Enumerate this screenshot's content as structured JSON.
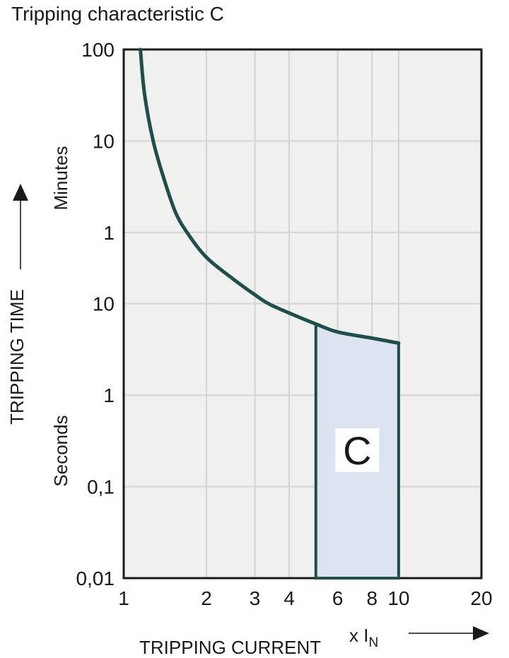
{
  "title": "Tripping characteristic C",
  "colors": {
    "curve": "#1d4f4b",
    "region_fill": "#dce4f2",
    "plot_background": "#f0f0ee",
    "gridline": "#d4d4d4",
    "frame": "#1a1a1a",
    "text": "#1a1a1a",
    "region_label_box": "#ffffff"
  },
  "y_axis": {
    "label": "TRIPPING TIME",
    "upper_unit": "Minutes",
    "lower_unit": "Seconds",
    "ticks": [
      {
        "label": "100",
        "seconds": 6000
      },
      {
        "label": "10",
        "seconds": 600
      },
      {
        "label": "1",
        "seconds": 60
      },
      {
        "label": "10",
        "seconds": 10
      },
      {
        "label": "1",
        "seconds": 1
      },
      {
        "label": "0,1",
        "seconds": 0.1
      },
      {
        "label": "0,01",
        "seconds": 0.01
      }
    ],
    "gridlines_seconds": [
      600,
      60,
      10,
      1,
      0.1
    ],
    "range_seconds": [
      0.01,
      6000
    ]
  },
  "x_axis": {
    "label": "TRIPPING CURRENT",
    "multiplier_prefix": "x I",
    "multiplier_subscript": "N",
    "ticks": [
      {
        "label": "1",
        "value": 1
      },
      {
        "label": "2",
        "value": 2
      },
      {
        "label": "3",
        "value": 3
      },
      {
        "label": "4",
        "value": 4
      },
      {
        "label": "6",
        "value": 6
      },
      {
        "label": "8",
        "value": 8
      },
      {
        "label": "10",
        "value": 10
      },
      {
        "label": "20",
        "value": 20
      }
    ],
    "gridlines": [
      2,
      3,
      4,
      6,
      8,
      10
    ],
    "range": [
      1,
      20
    ]
  },
  "chart_data": {
    "type": "line",
    "title": "Tripping characteristic C",
    "xlabel": "TRIPPING CURRENT (x IN)",
    "ylabel": "TRIPPING TIME (Minutes / Seconds)",
    "x_scale": "log",
    "y_scale": "log",
    "xlim": [
      1,
      20
    ],
    "ylim_seconds": [
      0.01,
      6000
    ],
    "grid": true,
    "series": [
      {
        "name": "C tripping characteristic curve",
        "x": [
          1.15,
          1.19,
          1.28,
          1.4,
          1.54,
          1.7,
          2.0,
          2.5,
          3.0,
          3.36,
          4.0,
          5.0,
          6.0,
          8.0,
          10.0
        ],
        "t_seconds": [
          6000,
          1970,
          600,
          233,
          101,
          60,
          32,
          18.6,
          12.5,
          10,
          7.9,
          6.0,
          4.9,
          4.2,
          3.7
        ]
      }
    ],
    "region": {
      "label": "C",
      "x_range": [
        5,
        10
      ],
      "bottom_seconds": 0.01,
      "top_points_x": [
        5.0,
        6.0,
        8.0,
        10.0
      ],
      "top_points_t_seconds": [
        6.0,
        4.9,
        4.2,
        3.7
      ]
    }
  }
}
